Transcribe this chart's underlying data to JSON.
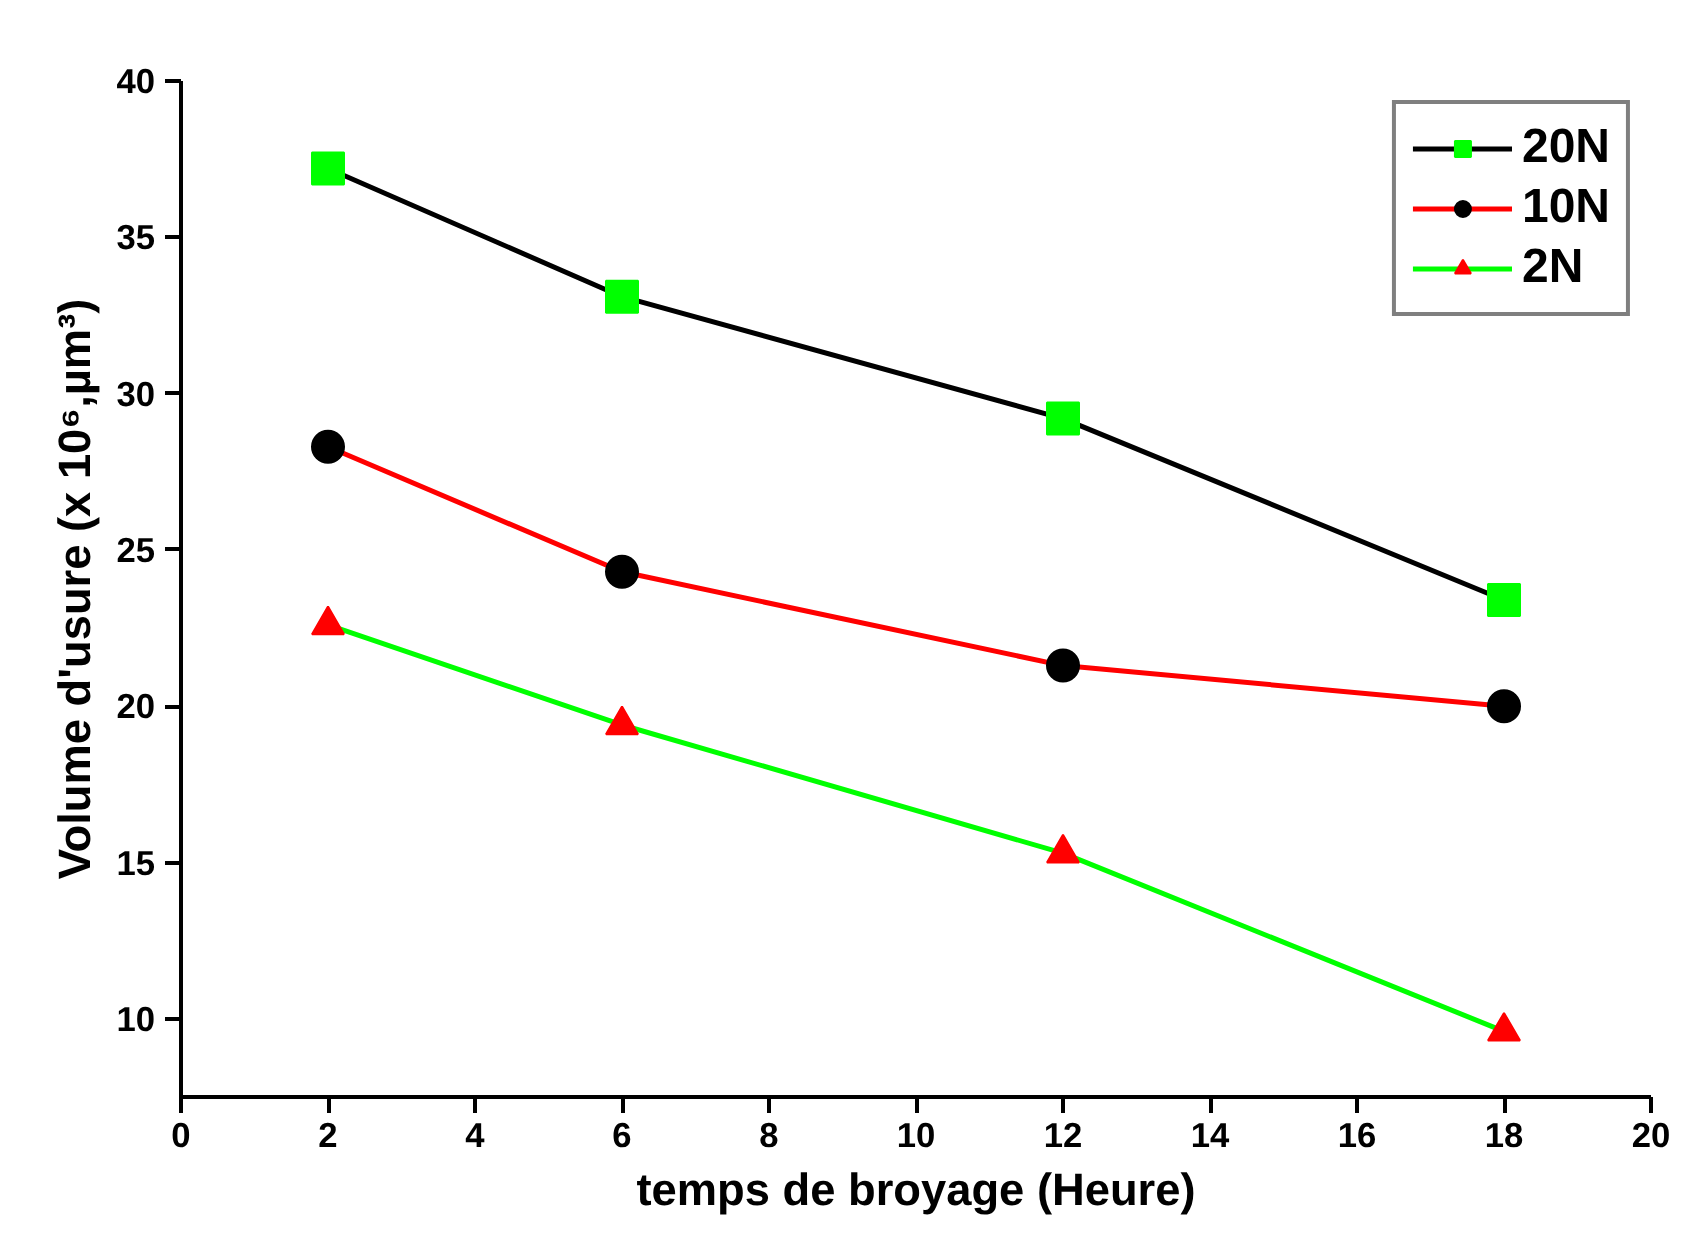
{
  "chart_data": {
    "type": "line",
    "xlabel": "temps de broyage (Heure)",
    "ylabel": "Volume d'usure (x 10⁶,µm³)",
    "x": [
      2,
      6,
      12,
      18
    ],
    "series": [
      {
        "name": "20N",
        "color": "#000000",
        "colors": [
          "#00ff00",
          "#00ff00",
          "#00ff00",
          "#00ff00"
        ],
        "marker": "square",
        "values": [
          37.2,
          33.1,
          29.2,
          23.4
        ]
      },
      {
        "name": "10N",
        "color": "#ff0000",
        "colors": [
          "#000000",
          "#000000",
          "#000000",
          "#000000"
        ],
        "marker": "circle",
        "values": [
          28.3,
          24.3,
          21.3,
          20.0
        ]
      },
      {
        "name": "2N",
        "color": "#00ff00",
        "colors": [
          "#ff0000",
          "#ff0000",
          "#ff0000",
          "#ff0000"
        ],
        "marker": "triangle",
        "values": [
          22.6,
          19.4,
          15.3,
          9.6
        ]
      }
    ],
    "xlim": [
      0,
      20
    ],
    "xticks": [
      0,
      2,
      4,
      6,
      8,
      10,
      12,
      14,
      16,
      18,
      20
    ],
    "ylim": [
      7.5,
      40
    ],
    "yticks": [
      10,
      15,
      20,
      25,
      30,
      35,
      40
    ],
    "grid": false,
    "legend": "top right",
    "line_style": "solid"
  }
}
